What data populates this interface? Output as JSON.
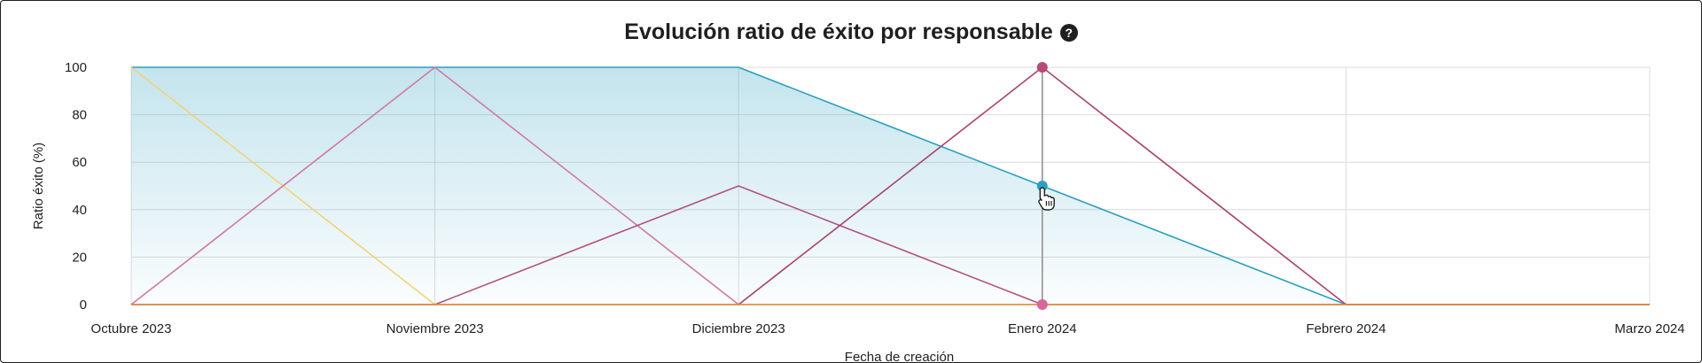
{
  "chart_data": {
    "type": "line",
    "title": "Evolución ratio de éxito por responsable",
    "xlabel": "Fecha de creación",
    "ylabel": "Ratio éxito (%)",
    "categories": [
      "Octubre 2023",
      "Noviembre 2023",
      "Diciembre 2023",
      "Enero 2024",
      "Febrero 2024",
      "Marzo 2024"
    ],
    "ylim": [
      0,
      100
    ],
    "yticks": [
      0,
      20,
      40,
      60,
      80,
      100
    ],
    "grid": true,
    "series": [
      {
        "color": "#2b9fc0",
        "area": true,
        "values": [
          100,
          100,
          100,
          50,
          0,
          0
        ]
      },
      {
        "color": "#f2d27a",
        "values": [
          100,
          0,
          0,
          0,
          0,
          0
        ]
      },
      {
        "color": "#d07aa3",
        "values": [
          0,
          100,
          0,
          0,
          0,
          0
        ]
      },
      {
        "color": "#b3527d",
        "values": [
          0,
          0,
          50,
          0,
          0,
          0
        ]
      },
      {
        "color": "#a8426e",
        "values": [
          0,
          0,
          0,
          100,
          0,
          0
        ]
      },
      {
        "color": "#e29a3a",
        "values": [
          0,
          0,
          0,
          0,
          0,
          0
        ]
      }
    ],
    "hover": {
      "category": "Enero 2024",
      "markers": [
        {
          "value": 100,
          "color": "#b84a78"
        },
        {
          "value": 50,
          "color": "#2b9fc0"
        },
        {
          "value": 0,
          "color": "#d8669c"
        }
      ]
    }
  },
  "icons": {
    "help": "question-circle-icon",
    "cursor": "hand-pointer-icon"
  },
  "help_glyph": "?"
}
